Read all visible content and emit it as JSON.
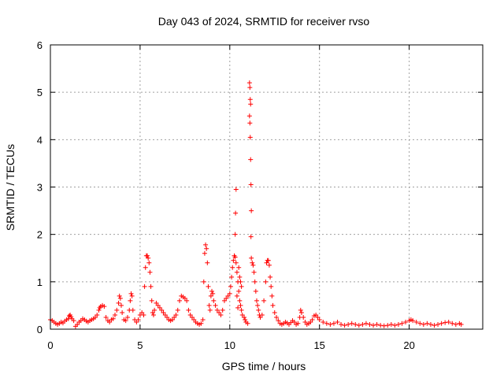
{
  "chart_data": {
    "type": "scatter",
    "title": "Day 043 of 2024, SRMTID for receiver rvso",
    "xlabel": "GPS time / hours",
    "ylabel": "SRMTID / TECUs",
    "xlim": [
      0,
      24.1
    ],
    "ylim": [
      0,
      6
    ],
    "xticks": [
      0,
      5,
      10,
      15,
      20
    ],
    "yticks": [
      0,
      1,
      2,
      3,
      4,
      5,
      6
    ],
    "grid": true,
    "marker": "+",
    "series": [
      {
        "name": "SRMTID",
        "color": "#ff0000",
        "points": [
          [
            0.0,
            0.2
          ],
          [
            0.1,
            0.18
          ],
          [
            0.2,
            0.15
          ],
          [
            0.3,
            0.12
          ],
          [
            0.4,
            0.1
          ],
          [
            0.5,
            0.12
          ],
          [
            0.6,
            0.15
          ],
          [
            0.7,
            0.13
          ],
          [
            0.8,
            0.17
          ],
          [
            0.9,
            0.2
          ],
          [
            1.0,
            0.22
          ],
          [
            1.05,
            0.28
          ],
          [
            1.1,
            0.3
          ],
          [
            1.15,
            0.26
          ],
          [
            1.2,
            0.22
          ],
          [
            1.3,
            0.18
          ],
          [
            1.4,
            0.06
          ],
          [
            1.5,
            0.1
          ],
          [
            1.6,
            0.15
          ],
          [
            1.7,
            0.18
          ],
          [
            1.8,
            0.22
          ],
          [
            1.9,
            0.2
          ],
          [
            2.0,
            0.17
          ],
          [
            2.1,
            0.15
          ],
          [
            2.2,
            0.18
          ],
          [
            2.3,
            0.2
          ],
          [
            2.4,
            0.22
          ],
          [
            2.5,
            0.25
          ],
          [
            2.6,
            0.3
          ],
          [
            2.7,
            0.4
          ],
          [
            2.75,
            0.45
          ],
          [
            2.8,
            0.48
          ],
          [
            2.9,
            0.5
          ],
          [
            3.0,
            0.48
          ],
          [
            3.1,
            0.25
          ],
          [
            3.2,
            0.18
          ],
          [
            3.3,
            0.15
          ],
          [
            3.4,
            0.2
          ],
          [
            3.5,
            0.22
          ],
          [
            3.6,
            0.3
          ],
          [
            3.7,
            0.4
          ],
          [
            3.8,
            0.55
          ],
          [
            3.85,
            0.7
          ],
          [
            3.9,
            0.65
          ],
          [
            3.95,
            0.5
          ],
          [
            4.0,
            0.35
          ],
          [
            4.1,
            0.2
          ],
          [
            4.2,
            0.18
          ],
          [
            4.3,
            0.25
          ],
          [
            4.4,
            0.4
          ],
          [
            4.45,
            0.6
          ],
          [
            4.5,
            0.75
          ],
          [
            4.55,
            0.7
          ],
          [
            4.6,
            0.4
          ],
          [
            4.7,
            0.2
          ],
          [
            4.8,
            0.15
          ],
          [
            4.9,
            0.2
          ],
          [
            5.0,
            0.3
          ],
          [
            5.1,
            0.35
          ],
          [
            5.2,
            0.3
          ],
          [
            5.25,
            0.9
          ],
          [
            5.3,
            1.3
          ],
          [
            5.35,
            1.55
          ],
          [
            5.4,
            1.55
          ],
          [
            5.45,
            1.5
          ],
          [
            5.5,
            1.4
          ],
          [
            5.55,
            1.2
          ],
          [
            5.6,
            0.9
          ],
          [
            5.65,
            0.6
          ],
          [
            5.7,
            0.35
          ],
          [
            5.75,
            0.3
          ],
          [
            5.8,
            0.4
          ],
          [
            5.9,
            0.55
          ],
          [
            6.0,
            0.5
          ],
          [
            6.1,
            0.45
          ],
          [
            6.2,
            0.4
          ],
          [
            6.3,
            0.35
          ],
          [
            6.4,
            0.3
          ],
          [
            6.5,
            0.25
          ],
          [
            6.6,
            0.2
          ],
          [
            6.7,
            0.18
          ],
          [
            6.8,
            0.2
          ],
          [
            6.9,
            0.25
          ],
          [
            7.0,
            0.3
          ],
          [
            7.1,
            0.4
          ],
          [
            7.2,
            0.6
          ],
          [
            7.3,
            0.7
          ],
          [
            7.4,
            0.68
          ],
          [
            7.5,
            0.65
          ],
          [
            7.6,
            0.6
          ],
          [
            7.7,
            0.4
          ],
          [
            7.8,
            0.3
          ],
          [
            7.9,
            0.25
          ],
          [
            8.0,
            0.2
          ],
          [
            8.1,
            0.15
          ],
          [
            8.2,
            0.12
          ],
          [
            8.3,
            0.1
          ],
          [
            8.4,
            0.12
          ],
          [
            8.5,
            0.2
          ],
          [
            8.55,
            1.0
          ],
          [
            8.6,
            1.6
          ],
          [
            8.65,
            1.78
          ],
          [
            8.7,
            1.7
          ],
          [
            8.75,
            1.4
          ],
          [
            8.8,
            0.9
          ],
          [
            8.85,
            0.5
          ],
          [
            8.9,
            0.4
          ],
          [
            8.95,
            0.7
          ],
          [
            9.0,
            0.8
          ],
          [
            9.05,
            0.75
          ],
          [
            9.1,
            0.6
          ],
          [
            9.2,
            0.5
          ],
          [
            9.3,
            0.4
          ],
          [
            9.4,
            0.35
          ],
          [
            9.5,
            0.3
          ],
          [
            9.6,
            0.4
          ],
          [
            9.7,
            0.6
          ],
          [
            9.8,
            0.65
          ],
          [
            9.9,
            0.7
          ],
          [
            10.0,
            0.75
          ],
          [
            10.05,
            0.9
          ],
          [
            10.1,
            1.1
          ],
          [
            10.15,
            1.3
          ],
          [
            10.2,
            1.45
          ],
          [
            10.25,
            1.55
          ],
          [
            10.3,
            1.52
          ],
          [
            10.35,
            1.4
          ],
          [
            10.4,
            1.2
          ],
          [
            10.45,
            1.0
          ],
          [
            10.5,
            0.8
          ],
          [
            10.55,
            0.6
          ],
          [
            10.6,
            0.5
          ],
          [
            10.65,
            0.4
          ],
          [
            10.7,
            0.3
          ],
          [
            10.8,
            0.25
          ],
          [
            10.85,
            0.2
          ],
          [
            10.9,
            0.15
          ],
          [
            11.0,
            0.12
          ],
          [
            10.3,
            2.0
          ],
          [
            10.32,
            2.45
          ],
          [
            10.35,
            2.95
          ],
          [
            10.4,
            0.7
          ],
          [
            10.45,
            0.45
          ],
          [
            10.5,
            1.3
          ],
          [
            10.55,
            1.1
          ],
          [
            10.6,
            1.0
          ],
          [
            10.65,
            0.9
          ],
          [
            11.1,
            5.2
          ],
          [
            11.12,
            5.1
          ],
          [
            11.14,
            4.85
          ],
          [
            11.16,
            4.75
          ],
          [
            11.1,
            4.5
          ],
          [
            11.12,
            4.35
          ],
          [
            11.14,
            4.05
          ],
          [
            11.16,
            3.58
          ],
          [
            11.18,
            3.05
          ],
          [
            11.2,
            2.5
          ],
          [
            11.18,
            1.95
          ],
          [
            11.2,
            1.5
          ],
          [
            11.25,
            1.4
          ],
          [
            11.3,
            1.35
          ],
          [
            11.35,
            1.2
          ],
          [
            11.4,
            1.0
          ],
          [
            11.45,
            0.8
          ],
          [
            11.5,
            0.6
          ],
          [
            11.55,
            0.5
          ],
          [
            11.6,
            0.4
          ],
          [
            11.65,
            0.3
          ],
          [
            11.7,
            0.25
          ],
          [
            11.8,
            0.3
          ],
          [
            11.9,
            0.6
          ],
          [
            12.0,
            1.0
          ],
          [
            12.05,
            1.4
          ],
          [
            12.1,
            1.45
          ],
          [
            12.15,
            1.45
          ],
          [
            12.2,
            1.35
          ],
          [
            12.25,
            1.1
          ],
          [
            12.3,
            0.9
          ],
          [
            12.35,
            0.7
          ],
          [
            12.4,
            0.5
          ],
          [
            12.5,
            0.35
          ],
          [
            12.6,
            0.25
          ],
          [
            12.7,
            0.18
          ],
          [
            12.8,
            0.12
          ],
          [
            12.9,
            0.1
          ],
          [
            13.0,
            0.12
          ],
          [
            13.1,
            0.15
          ],
          [
            13.2,
            0.13
          ],
          [
            13.3,
            0.1
          ],
          [
            13.4,
            0.14
          ],
          [
            13.5,
            0.18
          ],
          [
            13.6,
            0.15
          ],
          [
            13.7,
            0.1
          ],
          [
            13.8,
            0.12
          ],
          [
            13.9,
            0.25
          ],
          [
            13.95,
            0.4
          ],
          [
            14.0,
            0.35
          ],
          [
            14.1,
            0.25
          ],
          [
            14.2,
            0.15
          ],
          [
            14.3,
            0.1
          ],
          [
            14.4,
            0.12
          ],
          [
            14.5,
            0.15
          ],
          [
            14.6,
            0.2
          ],
          [
            14.7,
            0.28
          ],
          [
            14.8,
            0.3
          ],
          [
            14.9,
            0.25
          ],
          [
            15.0,
            0.2
          ],
          [
            15.2,
            0.15
          ],
          [
            15.4,
            0.12
          ],
          [
            15.6,
            0.1
          ],
          [
            15.8,
            0.12
          ],
          [
            16.0,
            0.15
          ],
          [
            16.2,
            0.1
          ],
          [
            16.4,
            0.08
          ],
          [
            16.6,
            0.1
          ],
          [
            16.8,
            0.12
          ],
          [
            17.0,
            0.1
          ],
          [
            17.2,
            0.08
          ],
          [
            17.4,
            0.1
          ],
          [
            17.6,
            0.12
          ],
          [
            17.8,
            0.1
          ],
          [
            18.0,
            0.08
          ],
          [
            18.2,
            0.1
          ],
          [
            18.4,
            0.08
          ],
          [
            18.6,
            0.07
          ],
          [
            18.8,
            0.08
          ],
          [
            19.0,
            0.1
          ],
          [
            19.2,
            0.08
          ],
          [
            19.4,
            0.1
          ],
          [
            19.6,
            0.12
          ],
          [
            19.8,
            0.15
          ],
          [
            20.0,
            0.18
          ],
          [
            20.1,
            0.2
          ],
          [
            20.2,
            0.18
          ],
          [
            20.4,
            0.15
          ],
          [
            20.6,
            0.12
          ],
          [
            20.8,
            0.1
          ],
          [
            21.0,
            0.12
          ],
          [
            21.2,
            0.1
          ],
          [
            21.4,
            0.08
          ],
          [
            21.6,
            0.1
          ],
          [
            21.8,
            0.12
          ],
          [
            22.0,
            0.14
          ],
          [
            22.2,
            0.15
          ],
          [
            22.4,
            0.12
          ],
          [
            22.6,
            0.1
          ],
          [
            22.8,
            0.12
          ],
          [
            22.9,
            0.1
          ]
        ]
      }
    ]
  }
}
